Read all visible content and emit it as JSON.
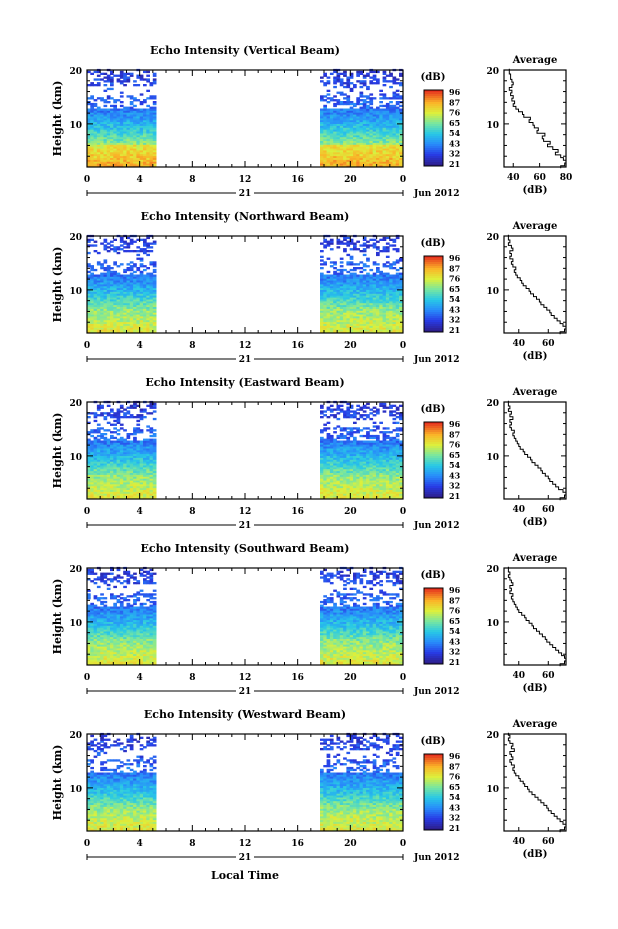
{
  "chart_data": [
    {
      "type": "heatmap",
      "title": "Echo Intensity (Vertical Beam)",
      "ylabel": "Height (km)",
      "ylim": [
        2,
        20
      ],
      "y_ticks": [
        "20",
        "10"
      ],
      "x_ticks": [
        "0",
        "4",
        "8",
        "12",
        "16",
        "20",
        "0"
      ],
      "xlim": [
        0,
        24
      ],
      "date_day": "21",
      "date_month": "Jun 2012",
      "data_intervals": [
        [
          0,
          5.2
        ],
        [
          17.7,
          23.8
        ]
      ],
      "colorbar": {
        "label": "(dB)",
        "ticks": [
          "96",
          "87",
          "76",
          "65",
          "54",
          "43",
          "32",
          "21"
        ],
        "min": 21,
        "max": 96
      },
      "profile": {
        "title": "Average",
        "xlabel": "(dB)",
        "x_ticks": [
          "40",
          "60",
          "80"
        ],
        "xlim": [
          33,
          80
        ],
        "y_ticks": [
          "20",
          "10"
        ],
        "height": [
          2.0,
          2.5,
          3.0,
          3.5,
          4.0,
          4.5,
          5.0,
          5.5,
          6.0,
          6.5,
          7.0,
          7.5,
          8.0,
          8.5,
          9.0,
          9.5,
          10.0,
          10.5,
          11.0,
          11.5,
          12.0,
          12.5,
          13.0,
          13.5,
          14.0,
          14.5,
          15.0,
          15.5,
          16.0,
          16.5,
          17.0,
          17.5,
          18.0,
          18.5,
          19.0,
          19.5,
          20.0
        ],
        "values": [
          76,
          79,
          80,
          78,
          76,
          72,
          74,
          70,
          66,
          68,
          63,
          62,
          64,
          58,
          59,
          56,
          55,
          52,
          53,
          48,
          47,
          44,
          42,
          40,
          41,
          39,
          40,
          38,
          39,
          37,
          39,
          40,
          39,
          38,
          38,
          37,
          37
        ]
      }
    },
    {
      "type": "heatmap",
      "title": "Echo Intensity (Northward Beam)",
      "ylabel": "Height (km)",
      "ylim": [
        2,
        20
      ],
      "y_ticks": [
        "20",
        "10"
      ],
      "x_ticks": [
        "0",
        "4",
        "8",
        "12",
        "16",
        "20",
        "0"
      ],
      "xlim": [
        0,
        24
      ],
      "date_day": "21",
      "date_month": "Jun 2012",
      "data_intervals": [
        [
          0,
          5.2
        ],
        [
          17.7,
          23.8
        ]
      ],
      "colorbar": {
        "label": "(dB)",
        "ticks": [
          "96",
          "87",
          "76",
          "65",
          "54",
          "43",
          "32",
          "21"
        ],
        "min": 21,
        "max": 96
      },
      "profile": {
        "title": "Average",
        "xlabel": "(dB)",
        "x_ticks": [
          "40",
          "60"
        ],
        "xlim": [
          30,
          72
        ],
        "y_ticks": [
          "20",
          "10"
        ],
        "height": [
          2.0,
          2.5,
          3.0,
          3.5,
          4.0,
          4.5,
          5.0,
          5.5,
          6.0,
          6.5,
          7.0,
          7.5,
          8.0,
          8.5,
          9.0,
          9.5,
          10.0,
          10.5,
          11.0,
          11.5,
          12.0,
          12.5,
          13.0,
          13.5,
          14.0,
          14.5,
          15.0,
          15.5,
          16.0,
          16.5,
          17.0,
          17.5,
          18.0,
          18.5,
          19.0,
          19.5,
          20.0
        ],
        "values": [
          68,
          71,
          72,
          70,
          68,
          66,
          64,
          62,
          61,
          59,
          57,
          55,
          54,
          52,
          50,
          48,
          47,
          45,
          43,
          42,
          41,
          39,
          38,
          37,
          38,
          36,
          35,
          36,
          34,
          35,
          34,
          36,
          35,
          33,
          34,
          33,
          33
        ]
      }
    },
    {
      "type": "heatmap",
      "title": "Echo Intensity (Eastward Beam)",
      "ylabel": "Height (km)",
      "ylim": [
        2,
        20
      ],
      "y_ticks": [
        "20",
        "10"
      ],
      "x_ticks": [
        "0",
        "4",
        "8",
        "12",
        "16",
        "20",
        "0"
      ],
      "xlim": [
        0,
        24
      ],
      "date_day": "21",
      "date_month": "Jun 2012",
      "data_intervals": [
        [
          0,
          5.2
        ],
        [
          17.7,
          23.8
        ]
      ],
      "colorbar": {
        "label": "(dB)",
        "ticks": [
          "96",
          "87",
          "76",
          "65",
          "54",
          "43",
          "32",
          "21"
        ],
        "min": 21,
        "max": 96
      },
      "profile": {
        "title": "Average",
        "xlabel": "(dB)",
        "x_ticks": [
          "40",
          "60"
        ],
        "xlim": [
          30,
          72
        ],
        "y_ticks": [
          "20",
          "10"
        ],
        "height": [
          2.0,
          2.5,
          3.0,
          3.5,
          4.0,
          4.5,
          5.0,
          5.5,
          6.0,
          6.5,
          7.0,
          7.5,
          8.0,
          8.5,
          9.0,
          9.5,
          10.0,
          10.5,
          11.0,
          11.5,
          12.0,
          12.5,
          13.0,
          13.5,
          14.0,
          14.5,
          15.0,
          15.5,
          16.0,
          16.5,
          17.0,
          17.5,
          18.0,
          18.5,
          19.0,
          19.5,
          20.0
        ],
        "values": [
          68,
          71,
          72,
          70,
          67,
          65,
          63,
          61,
          60,
          58,
          56,
          55,
          53,
          51,
          49,
          48,
          46,
          44,
          43,
          41,
          40,
          39,
          38,
          37,
          36,
          37,
          35,
          34,
          35,
          34,
          36,
          34,
          35,
          33,
          34,
          33,
          33
        ]
      }
    },
    {
      "type": "heatmap",
      "title": "Echo Intensity (Southward Beam)",
      "ylabel": "Height (km)",
      "ylim": [
        2,
        20
      ],
      "y_ticks": [
        "20",
        "10"
      ],
      "x_ticks": [
        "0",
        "4",
        "8",
        "12",
        "16",
        "20",
        "0"
      ],
      "xlim": [
        0,
        24
      ],
      "date_day": "21",
      "date_month": "Jun 2012",
      "data_intervals": [
        [
          0,
          5.2
        ],
        [
          17.7,
          23.8
        ]
      ],
      "colorbar": {
        "label": "(dB)",
        "ticks": [
          "96",
          "87",
          "76",
          "65",
          "54",
          "43",
          "32",
          "21"
        ],
        "min": 21,
        "max": 96
      },
      "profile": {
        "title": "Average",
        "xlabel": "(dB)",
        "x_ticks": [
          "40",
          "60"
        ],
        "xlim": [
          30,
          72
        ],
        "y_ticks": [
          "20",
          "10"
        ],
        "height": [
          2.0,
          2.5,
          3.0,
          3.5,
          4.0,
          4.5,
          5.0,
          5.5,
          6.0,
          6.5,
          7.0,
          7.5,
          8.0,
          8.5,
          9.0,
          9.5,
          10.0,
          10.5,
          11.0,
          11.5,
          12.0,
          12.5,
          13.0,
          13.5,
          14.0,
          14.5,
          15.0,
          15.5,
          16.0,
          16.5,
          17.0,
          17.5,
          18.0,
          18.5,
          19.0,
          19.5,
          20.0
        ],
        "values": [
          68,
          71,
          72,
          71,
          69,
          67,
          65,
          63,
          61,
          59,
          58,
          56,
          54,
          52,
          50,
          49,
          47,
          45,
          44,
          42,
          40,
          39,
          38,
          37,
          36,
          35,
          36,
          34,
          35,
          34,
          36,
          35,
          34,
          33,
          34,
          33,
          33
        ]
      }
    },
    {
      "type": "heatmap",
      "title": "Echo Intensity (Westward Beam)",
      "ylabel": "Height (km)",
      "ylim": [
        2,
        20
      ],
      "y_ticks": [
        "20",
        "10"
      ],
      "x_ticks": [
        "0",
        "4",
        "8",
        "12",
        "16",
        "20",
        "0"
      ],
      "xlim": [
        0,
        24
      ],
      "date_day": "21",
      "date_month": "Jun 2012",
      "data_intervals": [
        [
          0,
          5.2
        ],
        [
          17.7,
          23.8
        ]
      ],
      "colorbar": {
        "label": "(dB)",
        "ticks": [
          "96",
          "87",
          "76",
          "65",
          "54",
          "43",
          "32",
          "21"
        ],
        "min": 21,
        "max": 96
      },
      "profile": {
        "title": "Average",
        "xlabel": "(dB)",
        "x_ticks": [
          "40",
          "60"
        ],
        "xlim": [
          30,
          72
        ],
        "y_ticks": [
          "20",
          "10"
        ],
        "height": [
          2.0,
          2.5,
          3.0,
          3.5,
          4.0,
          4.5,
          5.0,
          5.5,
          6.0,
          6.5,
          7.0,
          7.5,
          8.0,
          8.5,
          9.0,
          9.5,
          10.0,
          10.5,
          11.0,
          11.5,
          12.0,
          12.5,
          13.0,
          13.5,
          14.0,
          14.5,
          15.0,
          15.5,
          16.0,
          16.5,
          17.0,
          17.5,
          18.0,
          18.5,
          19.0,
          19.5,
          20.0
        ],
        "values": [
          68,
          71,
          72,
          70,
          68,
          66,
          64,
          62,
          60,
          59,
          57,
          55,
          53,
          51,
          49,
          47,
          46,
          44,
          43,
          41,
          40,
          38,
          37,
          36,
          37,
          35,
          34,
          36,
          35,
          34,
          37,
          35,
          36,
          34,
          33,
          34,
          33
        ]
      }
    }
  ],
  "footer": {
    "xlabel": "Local Time"
  }
}
